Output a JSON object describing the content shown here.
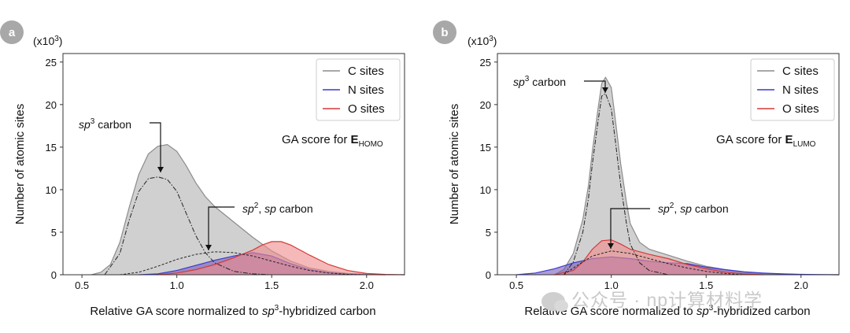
{
  "chart_data": [
    {
      "type": "area",
      "panel": "a",
      "multiplier": "(x10",
      "multiplier_exp": "3",
      "multiplier_close": ")",
      "ylabel": "Number of atomic sites",
      "xlabel_parts": [
        "Relative GA score normalized to ",
        "sp",
        "3",
        "-hybridized carbon"
      ],
      "xlim": [
        0.4,
        2.2
      ],
      "ylim": [
        0,
        26
      ],
      "xticks": [
        0.5,
        1.0,
        1.5,
        2.0
      ],
      "xtick_labels": [
        "0.5",
        "1.0",
        "1.5",
        "2.0"
      ],
      "yticks": [
        0,
        5,
        10,
        15,
        20,
        25
      ],
      "ytick_labels": [
        "0",
        "5",
        "10",
        "15",
        "20",
        "25"
      ],
      "legend_position": "top-right",
      "series": [
        {
          "name": "C sites",
          "color": "#8c8c8c",
          "fill": "#c8c8c8",
          "x": [
            0.55,
            0.6,
            0.65,
            0.7,
            0.75,
            0.8,
            0.85,
            0.9,
            0.95,
            1.0,
            1.05,
            1.1,
            1.15,
            1.2,
            1.3,
            1.4,
            1.5,
            1.6,
            1.7,
            1.8,
            1.9,
            2.0,
            2.1,
            2.2
          ],
          "values": [
            0,
            0.3,
            1.2,
            3.8,
            8.0,
            11.8,
            14.2,
            15.1,
            15.3,
            14.5,
            12.8,
            10.8,
            9.2,
            8.0,
            6.2,
            4.4,
            2.8,
            1.6,
            0.8,
            0.4,
            0.15,
            0.05,
            0.02,
            0
          ]
        },
        {
          "name": "N sites",
          "color": "#3a3ad0",
          "fill": "#7a5ab8",
          "x": [
            0.8,
            0.9,
            1.0,
            1.1,
            1.2,
            1.3,
            1.4,
            1.5,
            1.6,
            1.7,
            1.8,
            1.9,
            2.0,
            2.1
          ],
          "values": [
            0,
            0.1,
            0.5,
            1.1,
            1.7,
            2.2,
            2.6,
            2.2,
            1.3,
            0.6,
            0.25,
            0.08,
            0.02,
            0
          ]
        },
        {
          "name": "O sites",
          "color": "#d43a3a",
          "fill": "#f08a8a",
          "x": [
            0.9,
            1.0,
            1.1,
            1.2,
            1.3,
            1.4,
            1.45,
            1.5,
            1.55,
            1.6,
            1.7,
            1.8,
            1.9,
            2.0,
            2.1,
            2.2
          ],
          "values": [
            0,
            0.2,
            0.6,
            1.2,
            2.0,
            2.9,
            3.5,
            3.9,
            3.9,
            3.5,
            2.3,
            1.2,
            0.5,
            0.15,
            0.04,
            0
          ]
        }
      ],
      "subcurves": [
        {
          "name": "sp3 carbon",
          "style": "dashdot",
          "x": [
            0.62,
            0.7,
            0.75,
            0.8,
            0.85,
            0.9,
            0.95,
            1.0,
            1.05,
            1.1,
            1.15,
            1.2,
            1.3,
            1.4,
            1.5
          ],
          "values": [
            0,
            2.5,
            6.5,
            9.8,
            11.3,
            11.5,
            11.2,
            9.8,
            7.2,
            4.6,
            2.6,
            1.4,
            0.4,
            0.1,
            0
          ]
        },
        {
          "name": "sp2, sp carbon",
          "style": "dashed",
          "x": [
            0.7,
            0.8,
            0.9,
            1.0,
            1.1,
            1.2,
            1.3,
            1.4,
            1.5,
            1.6,
            1.7,
            1.8,
            1.9,
            2.0
          ],
          "values": [
            0,
            0.3,
            1.0,
            1.8,
            2.4,
            2.7,
            2.6,
            2.2,
            1.6,
            1.0,
            0.5,
            0.2,
            0.05,
            0
          ]
        }
      ],
      "annotations": [
        {
          "text_italic": "sp",
          "sup": "3",
          "text": " carbon",
          "x": 0.92,
          "y": 11.5
        },
        {
          "text_italic": "sp",
          "sup": "2",
          "text_mid": ", ",
          "text_italic2": "sp",
          "text": " carbon",
          "x": 1.17,
          "y": 2.5
        }
      ],
      "ga_text": "GA score for ",
      "ga_bold": "E",
      "ga_sub": "HOMO"
    },
    {
      "type": "area",
      "panel": "b",
      "multiplier": "(x10",
      "multiplier_exp": "3",
      "multiplier_close": ")",
      "ylabel": "Number of atomic sites",
      "xlabel_parts": [
        "Relative GA score normalized to ",
        "sp",
        "3",
        "-hybridized carbon"
      ],
      "xlim": [
        0.4,
        2.2
      ],
      "ylim": [
        0,
        26
      ],
      "xticks": [
        0.5,
        1.0,
        1.5,
        2.0
      ],
      "xtick_labels": [
        "0.5",
        "1.0",
        "1.5",
        "2.0"
      ],
      "yticks": [
        0,
        5,
        10,
        15,
        20,
        25
      ],
      "ytick_labels": [
        "0",
        "5",
        "10",
        "15",
        "20",
        "25"
      ],
      "legend_position": "top-right",
      "series": [
        {
          "name": "C sites",
          "color": "#8c8c8c",
          "fill": "#c8c8c8",
          "x": [
            0.7,
            0.75,
            0.8,
            0.85,
            0.88,
            0.9,
            0.93,
            0.95,
            0.97,
            1.0,
            1.02,
            1.05,
            1.08,
            1.1,
            1.15,
            1.2,
            1.3,
            1.4,
            1.5,
            1.6,
            1.7,
            1.8,
            2.0,
            2.2
          ],
          "values": [
            0,
            0.6,
            2.5,
            6.5,
            10.5,
            14.5,
            19.5,
            22.5,
            23.2,
            22.0,
            18.5,
            13.0,
            8.5,
            6.0,
            3.8,
            3.0,
            2.3,
            1.6,
            1.0,
            0.6,
            0.3,
            0.15,
            0.03,
            0
          ]
        },
        {
          "name": "N sites",
          "color": "#3a3ad0",
          "fill": "#7a5ab8",
          "x": [
            0.5,
            0.6,
            0.7,
            0.8,
            0.9,
            1.0,
            1.1,
            1.2,
            1.3,
            1.4,
            1.5,
            1.6,
            1.7,
            1.8,
            1.9,
            2.0,
            2.1,
            2.2
          ],
          "values": [
            0,
            0.2,
            0.7,
            1.4,
            1.9,
            2.1,
            1.9,
            1.6,
            1.4,
            1.3,
            0.9,
            0.6,
            0.35,
            0.2,
            0.1,
            0.05,
            0.02,
            0
          ]
        },
        {
          "name": "O sites",
          "color": "#d43a3a",
          "fill": "#f08a8a",
          "x": [
            0.7,
            0.8,
            0.85,
            0.9,
            0.95,
            1.0,
            1.05,
            1.1,
            1.2,
            1.3,
            1.4,
            1.5,
            1.6,
            1.7,
            1.8
          ],
          "values": [
            0,
            0.5,
            1.5,
            3.0,
            4.0,
            4.1,
            3.6,
            3.0,
            2.4,
            1.9,
            1.2,
            0.7,
            0.3,
            0.1,
            0
          ]
        }
      ],
      "subcurves": [
        {
          "name": "sp3 carbon",
          "style": "dashdot",
          "x": [
            0.75,
            0.8,
            0.85,
            0.88,
            0.9,
            0.93,
            0.95,
            0.97,
            1.0,
            1.02,
            1.05,
            1.08,
            1.1,
            1.15,
            1.2,
            1.3
          ],
          "values": [
            0,
            1.5,
            5.0,
            9.0,
            13.0,
            18.0,
            21.0,
            21.3,
            19.5,
            16.0,
            10.5,
            6.0,
            3.6,
            1.4,
            0.5,
            0
          ]
        },
        {
          "name": "sp2, sp carbon",
          "style": "dashed",
          "x": [
            0.75,
            0.8,
            0.9,
            1.0,
            1.1,
            1.2,
            1.3,
            1.4,
            1.5,
            1.6,
            1.7
          ],
          "values": [
            0,
            0.8,
            2.2,
            2.8,
            2.5,
            1.9,
            1.3,
            0.8,
            0.4,
            0.15,
            0
          ]
        }
      ],
      "annotations": [
        {
          "text_italic": "sp",
          "sup": "3",
          "text": " carbon",
          "x": 0.97,
          "y": 21.3
        },
        {
          "text_italic": "sp",
          "sup": "2",
          "text_mid": ", ",
          "text_italic2": "sp",
          "text": " carbon",
          "x": 0.99,
          "y": 3.0
        }
      ],
      "ga_text": "GA score for ",
      "ga_bold": "E",
      "ga_sub": "LUMO"
    }
  ],
  "watermark": "公众号 · np计算材料学"
}
